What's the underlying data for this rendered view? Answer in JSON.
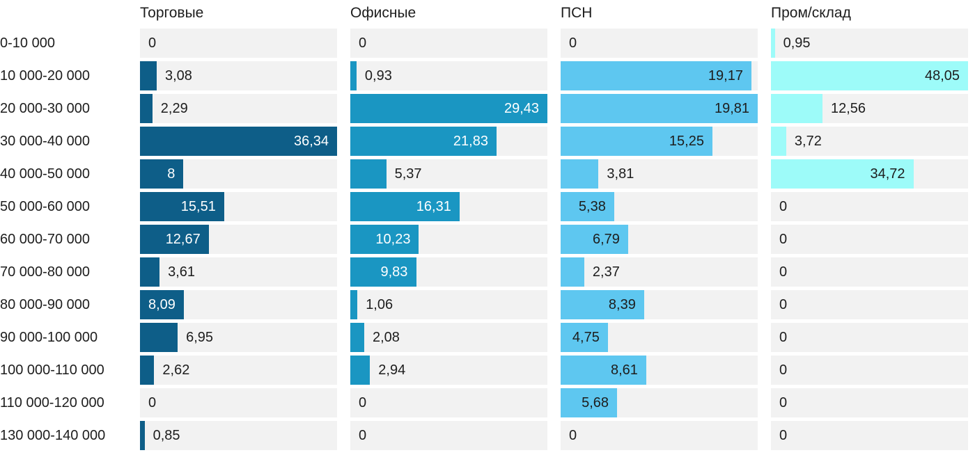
{
  "chart_data": {
    "type": "bar",
    "orientation": "horizontal",
    "title": "",
    "decimal_separator": ",",
    "track_color": "#f2f2f2",
    "outside_label_color": "#1d1d1d",
    "scaling": "each column scaled independently to its own maximum value",
    "categories": [
      "0-10 000",
      "10 000-20 000",
      "20 000-30 000",
      "30 000-40 000",
      "40 000-50 000",
      "50 000-60 000",
      "60 000-70 000",
      "70 000-80 000",
      "80 000-90 000",
      "90 000-100 000",
      "100 000-110 000",
      "110 000-120 000",
      "130 000-140 000"
    ],
    "series": [
      {
        "name": "Торговые",
        "color": "#0e5e88",
        "inside_label_color": "#ffffff",
        "values": [
          0,
          3.08,
          2.29,
          36.34,
          8,
          15.51,
          12.67,
          3.61,
          8.09,
          6.95,
          2.62,
          0,
          0.85
        ],
        "labels": [
          "0",
          "3,08",
          "2,29",
          "36,34",
          "8",
          "15,51",
          "12,67",
          "3,61",
          "8,09",
          "6,95",
          "2,62",
          "0",
          "0,85"
        ]
      },
      {
        "name": "Офисные",
        "color": "#1a96c2",
        "inside_label_color": "#ffffff",
        "values": [
          0,
          0.93,
          29.43,
          21.83,
          5.37,
          16.31,
          10.23,
          9.83,
          1.06,
          2.08,
          2.94,
          0,
          0
        ],
        "labels": [
          "0",
          "0,93",
          "29,43",
          "21,83",
          "5,37",
          "16,31",
          "10,23",
          "9,83",
          "1,06",
          "2,08",
          "2,94",
          "0",
          "0"
        ]
      },
      {
        "name": "ПСН",
        "color": "#5ec7f0",
        "inside_label_color": "#1d1d1d",
        "values": [
          0,
          19.17,
          19.81,
          15.25,
          3.81,
          5.38,
          6.79,
          2.37,
          8.39,
          4.75,
          8.61,
          5.68,
          0
        ],
        "labels": [
          "0",
          "19,17",
          "19,81",
          "15,25",
          "3,81",
          "5,38",
          "6,79",
          "2,37",
          "8,39",
          "4,75",
          "8,61",
          "5,68",
          "0"
        ]
      },
      {
        "name": "Пром/склад",
        "color": "#9dfbf9",
        "inside_label_color": "#1d1d1d",
        "values": [
          0.95,
          48.05,
          12.56,
          3.72,
          34.72,
          0,
          0,
          0,
          0,
          0,
          0,
          0,
          0
        ],
        "labels": [
          "0,95",
          "48,05",
          "12,56",
          "3,72",
          "34,72",
          "0",
          "0",
          "0",
          "0",
          "0",
          "0",
          "0",
          "0"
        ]
      }
    ]
  }
}
